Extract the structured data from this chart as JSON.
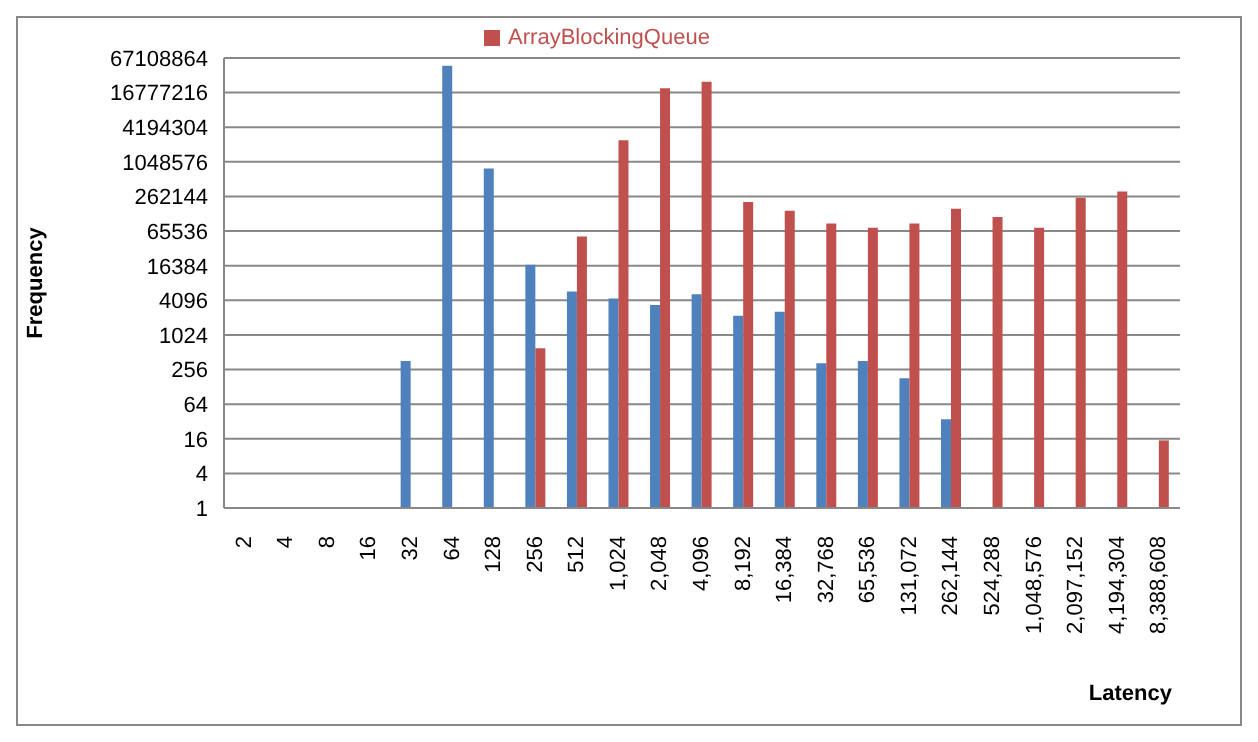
{
  "chart_data": {
    "type": "bar",
    "xlabel": "Latency",
    "ylabel": "Frequency",
    "categories": [
      "2",
      "4",
      "8",
      "16",
      "32",
      "64",
      "128",
      "256",
      "512",
      "1,024",
      "2,048",
      "4,096",
      "8,192",
      "16,384",
      "32,768",
      "65,536",
      "131,072",
      "262,144",
      "524,288",
      "1,048,576",
      "2,097,152",
      "4,194,304",
      "8,388,608"
    ],
    "series": [
      {
        "color": "#4f81bd",
        "values": [
          null,
          null,
          null,
          null,
          360,
          49000000,
          800000,
          17000,
          5800,
          4400,
          3400,
          5200,
          2200,
          2600,
          330,
          360,
          180,
          35,
          null,
          null,
          null,
          null,
          null
        ]
      },
      {
        "name": "ArrayBlockingQueue",
        "color": "#c0504d",
        "values": [
          null,
          null,
          null,
          null,
          null,
          null,
          null,
          600,
          53000,
          2500000,
          20000000,
          26000000,
          210000,
          148000,
          89000,
          75000,
          89000,
          160000,
          115000,
          75000,
          250000,
          320000,
          15
        ]
      }
    ],
    "log": "y",
    "ylim": [
      1,
      67108864
    ],
    "yticks": [
      1,
      4,
      16,
      64,
      256,
      1024,
      4096,
      16384,
      65536,
      262144,
      1048576,
      4194304,
      16777216,
      67108864
    ],
    "grid": "y",
    "legend": "top"
  }
}
